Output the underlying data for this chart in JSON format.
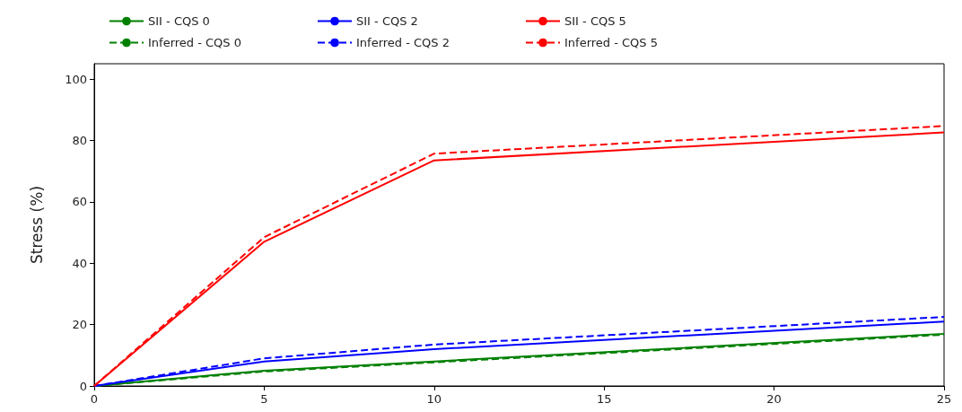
{
  "chart_data": {
    "type": "line",
    "ylabel": "Stress (%)",
    "x": [
      0,
      5,
      10,
      25
    ],
    "series": [
      {
        "name": "SII - CQS 0",
        "color": "#008000",
        "line_style": "solid",
        "values": [
          0,
          5,
          8,
          17
        ]
      },
      {
        "name": "Inferred - CQS 0",
        "color": "#008000",
        "line_style": "dashed",
        "values": [
          0,
          4.7,
          7.7,
          16.7
        ]
      },
      {
        "name": "SII - CQS 2",
        "color": "#0000ff",
        "line_style": "solid",
        "values": [
          0,
          8,
          12,
          21
        ]
      },
      {
        "name": "Inferred - CQS 2",
        "color": "#0000ff",
        "line_style": "dashed",
        "values": [
          0,
          9,
          13.5,
          22.5
        ]
      },
      {
        "name": "SII - CQS 5",
        "color": "#ff0000",
        "line_style": "solid",
        "values": [
          0,
          47,
          73.5,
          82.6
        ]
      },
      {
        "name": "Inferred - CQS 5",
        "color": "#ff0000",
        "line_style": "dashed",
        "values": [
          0,
          48.5,
          75.7,
          84.7
        ]
      }
    ],
    "xlim": [
      0,
      25
    ],
    "xticks": [
      0,
      5,
      10,
      15,
      20,
      25
    ],
    "ylim": [
      0,
      105
    ],
    "yticks": [
      0,
      20,
      40,
      60,
      80,
      100
    ],
    "grid": false,
    "legend": "top",
    "marker": "none"
  }
}
